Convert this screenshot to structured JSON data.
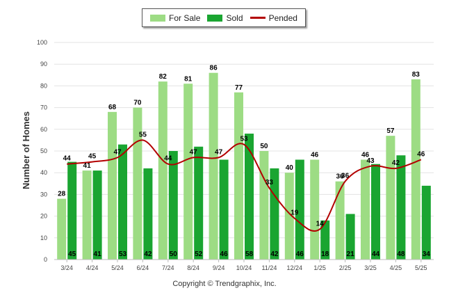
{
  "chart_data": {
    "type": "bar",
    "ylabel": "Number of Homes",
    "ylim": [
      0,
      100
    ],
    "yticks": [
      0,
      10,
      20,
      30,
      40,
      50,
      60,
      70,
      80,
      90,
      100
    ],
    "categories": [
      "3/24",
      "4/24",
      "5/24",
      "6/24",
      "7/24",
      "8/24",
      "9/24",
      "10/24",
      "11/24",
      "12/24",
      "1/25",
      "2/25",
      "3/25",
      "4/25",
      "5/25"
    ],
    "series": [
      {
        "name": "For Sale",
        "kind": "bar",
        "color": "#9ddc84",
        "values": [
          28,
          41,
          68,
          70,
          82,
          81,
          86,
          77,
          50,
          40,
          46,
          36,
          46,
          57,
          83
        ]
      },
      {
        "name": "Sold",
        "kind": "bar",
        "color": "#1aa531",
        "values": [
          45,
          41,
          53,
          42,
          50,
          52,
          46,
          58,
          42,
          46,
          18,
          21,
          44,
          48,
          34
        ]
      },
      {
        "name": "Pended",
        "kind": "line",
        "color": "#b30000",
        "values": [
          44,
          45,
          47,
          55,
          44,
          47,
          47,
          53,
          33,
          19,
          14,
          36,
          43,
          42,
          46
        ]
      }
    ],
    "grid": true,
    "legend": "top-center"
  },
  "copyright": "Copyright © Trendgraphix, Inc."
}
